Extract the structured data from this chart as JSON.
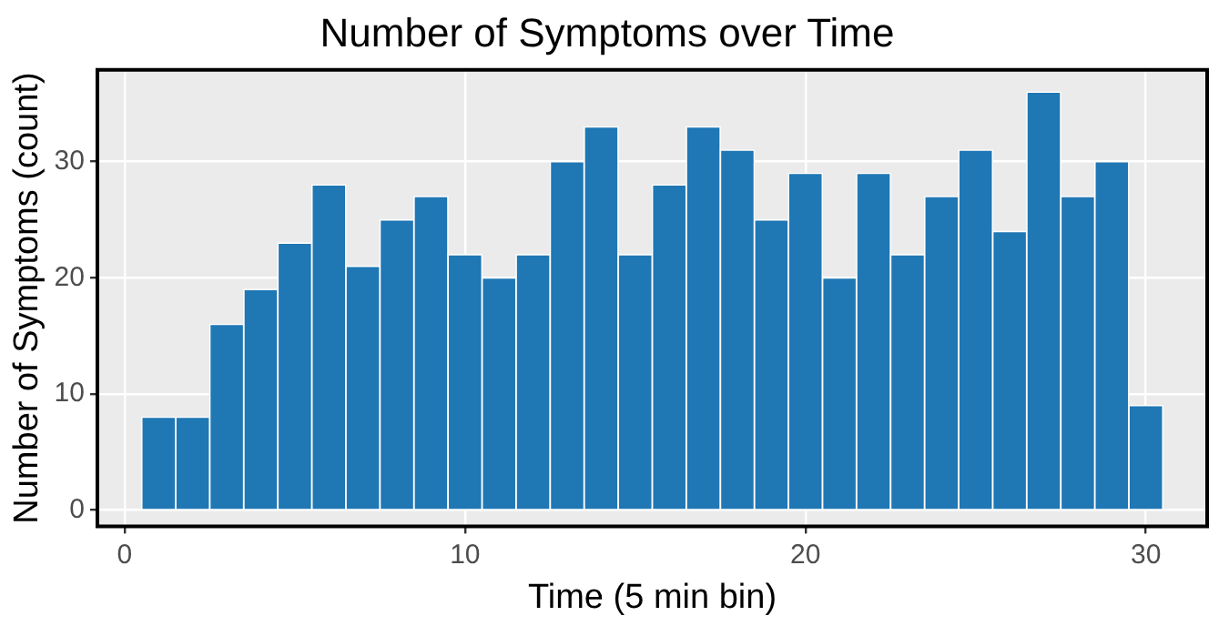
{
  "chart_data": {
    "type": "histogram",
    "title": "Number of Symptoms over Time",
    "xlabel": "Time (5 min bin)",
    "ylabel": "Number of Symptoms (count)",
    "bins": [
      0.5,
      1.5,
      2.5,
      3.5,
      4.5,
      5.5,
      6.5,
      7.5,
      8.5,
      9.5,
      10.5,
      11.5,
      12.5,
      13.5,
      14.5,
      15.5,
      16.5,
      17.5,
      18.5,
      19.5,
      20.5,
      21.5,
      22.5,
      23.5,
      24.5,
      25.5,
      26.5,
      27.5,
      28.5,
      29.5,
      30.5
    ],
    "values": [
      8,
      8,
      16,
      19,
      23,
      28,
      21,
      25,
      27,
      22,
      20,
      22,
      30,
      33,
      22,
      28,
      33,
      31,
      25,
      29,
      20,
      29,
      22,
      27,
      31,
      24,
      36,
      27,
      30,
      9
    ],
    "color": "#1f77b4",
    "xlim": [
      -0.8,
      31.8
    ],
    "ylim": [
      -1.4,
      37.9
    ],
    "xticks": [
      0,
      10,
      20,
      30
    ],
    "yticks": [
      0,
      10,
      20,
      30
    ],
    "grid": true
  }
}
